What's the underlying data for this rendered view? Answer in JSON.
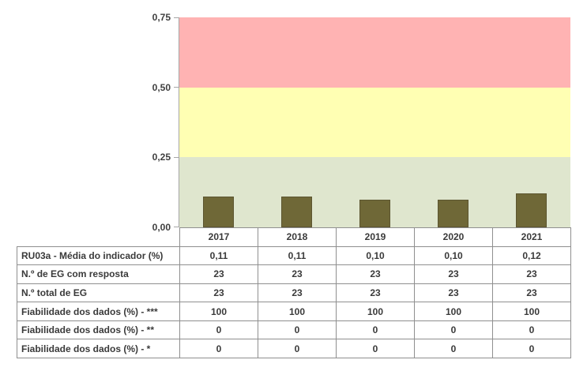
{
  "chart_data": {
    "type": "bar",
    "title": "",
    "xlabel": "",
    "ylabel": "",
    "categories": [
      "2017",
      "2018",
      "2019",
      "2020",
      "2021"
    ],
    "series": [
      {
        "name": "RU03a - Média do indicador (%)",
        "values": [
          0.11,
          0.11,
          0.1,
          0.1,
          0.12
        ]
      }
    ],
    "ylim": [
      0,
      0.75
    ],
    "y_ticks": [
      "0,75",
      "0,50",
      "0,25",
      "0,00"
    ],
    "grid": false,
    "legend_position": "none",
    "bands": [
      {
        "range": [
          0.5,
          0.75
        ],
        "color": "#ffb3b3",
        "meaning": "red-zone"
      },
      {
        "range": [
          0.25,
          0.5
        ],
        "color": "#ffffb3",
        "meaning": "yellow-zone"
      },
      {
        "range": [
          0.0,
          0.25
        ],
        "color": "#dfe6ce",
        "meaning": "green-zone"
      }
    ],
    "bar_color": "#6f6837",
    "bar_border_color": "#5c5530",
    "axis_color": "#a6a6a6"
  },
  "table": {
    "year_headers": [
      "2017",
      "2018",
      "2019",
      "2020",
      "2021"
    ],
    "rows": [
      {
        "label": "RU03a - Média do indicador (%)",
        "values": [
          "0,11",
          "0,11",
          "0,10",
          "0,10",
          "0,12"
        ]
      },
      {
        "label": "N.º de EG com resposta",
        "values": [
          "23",
          "23",
          "23",
          "23",
          "23"
        ]
      },
      {
        "label": "N.º total de EG",
        "values": [
          "23",
          "23",
          "23",
          "23",
          "23"
        ]
      },
      {
        "label": "Fiabilidade dos dados (%) - ***",
        "values": [
          "100",
          "100",
          "100",
          "100",
          "100"
        ]
      },
      {
        "label": "Fiabilidade dos dados (%) - **",
        "values": [
          "0",
          "0",
          "0",
          "0",
          "0"
        ]
      },
      {
        "label": "Fiabilidade dos dados (%) - *",
        "values": [
          "0",
          "0",
          "0",
          "0",
          "0"
        ]
      }
    ]
  }
}
